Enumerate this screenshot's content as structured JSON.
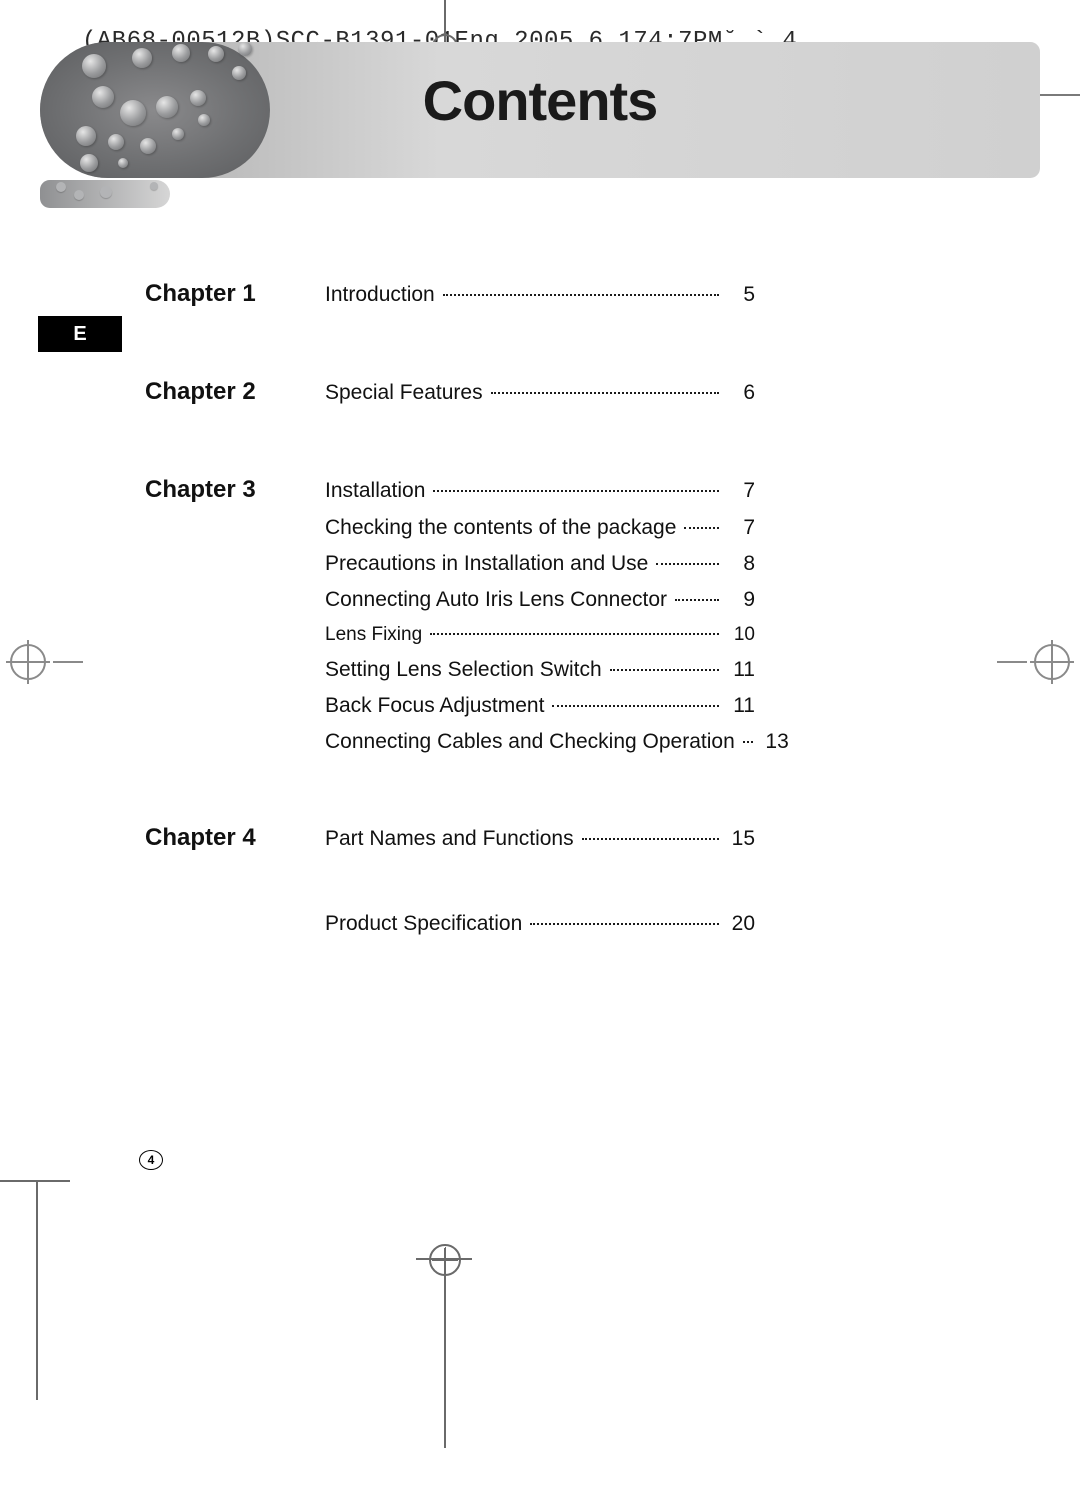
{
  "meta": {
    "header_code": "(AB68-00512B)SCC-B1391-01Eng 2005.6.174:7PM˘   `  4",
    "title": "Contents",
    "side_tab": "E",
    "page_number": "4"
  },
  "colors": {
    "text": "#111111",
    "hero_grad_start": "#9e9e9e",
    "hero_grad_end": "#d0d0d0",
    "hero_dark": "#6f7072",
    "crop": "#6a6a6a",
    "bg": "#ffffff"
  },
  "typography": {
    "title_fontsize": 56,
    "chapter_fontsize": 24,
    "entry_fontsize": 21,
    "header_font": "Courier New"
  },
  "toc": [
    {
      "chapter": "Chapter 1",
      "items": [
        {
          "label": "Introduction",
          "page": "5"
        }
      ]
    },
    {
      "chapter": "Chapter 2",
      "items": [
        {
          "label": "Special Features",
          "page": "6"
        }
      ]
    },
    {
      "chapter": "Chapter 3",
      "items": [
        {
          "label": "Installation",
          "page": "7"
        },
        {
          "label": "Checking the contents of the package",
          "page": "7"
        },
        {
          "label": "Precautions in Installation and Use",
          "page": "8"
        },
        {
          "label": "Connecting Auto Iris Lens Connector",
          "page": "9"
        },
        {
          "label": "Lens Fixing",
          "page": "10",
          "small": true
        },
        {
          "label": "Setting Lens Selection Switch",
          "page": "11"
        },
        {
          "label": "Back Focus Adjustment",
          "page": "11"
        },
        {
          "label": "Connecting Cables and Checking Operation",
          "page": "13"
        }
      ]
    },
    {
      "chapter": "Chapter 4",
      "items": [
        {
          "label": "Part Names and Functions",
          "page": "15"
        }
      ]
    },
    {
      "chapter": "",
      "items": [
        {
          "label": "Product Specification",
          "page": "20"
        }
      ]
    }
  ]
}
